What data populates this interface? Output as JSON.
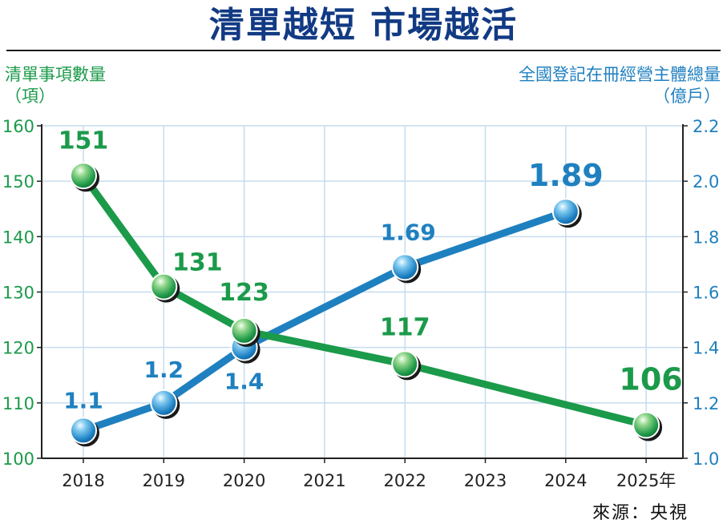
{
  "header": {
    "title": "清單越短 市場越活",
    "left_axis_title_line1": "清單事項數量",
    "left_axis_title_line2": "（項）",
    "right_axis_title_line1": "全國登記在冊經營主體總量",
    "right_axis_title_line2": "（億戶）",
    "source": "來源：央視"
  },
  "colors": {
    "green": "#1b9a4a",
    "blue": "#1f80c0",
    "title": "#123a84",
    "grid": "#c6dcee"
  },
  "chart_data": {
    "type": "line",
    "categories": [
      "2018",
      "2019",
      "2020",
      "2021",
      "2022",
      "2023",
      "2024",
      "2025年"
    ],
    "series": [
      {
        "axis": "left",
        "color": "#1b9a4a",
        "points": [
          {
            "x": "2018",
            "y": 151,
            "label": "151"
          },
          {
            "x": "2019",
            "y": 131,
            "label": "131"
          },
          {
            "x": "2020",
            "y": 123,
            "label": "123"
          },
          {
            "x": "2022",
            "y": 117,
            "label": "117"
          },
          {
            "x": "2025年",
            "y": 106,
            "label": "106"
          }
        ]
      },
      {
        "axis": "right",
        "color": "#1f80c0",
        "points": [
          {
            "x": "2018",
            "y": 1.1,
            "label": "1.1"
          },
          {
            "x": "2019",
            "y": 1.2,
            "label": "1.2"
          },
          {
            "x": "2020",
            "y": 1.4,
            "label": "1.4"
          },
          {
            "x": "2022",
            "y": 1.69,
            "label": "1.69"
          },
          {
            "x": "2024",
            "y": 1.89,
            "label": "1.89"
          }
        ]
      }
    ],
    "y_left": {
      "range": [
        100,
        160
      ],
      "ticks": [
        "100",
        "110",
        "120",
        "130",
        "140",
        "150",
        "160"
      ]
    },
    "y_right": {
      "range": [
        1.0,
        2.2
      ],
      "ticks": [
        "1.0",
        "1.2",
        "1.4",
        "1.6",
        "1.8",
        "2.0",
        "2.2"
      ]
    },
    "grid": true
  }
}
